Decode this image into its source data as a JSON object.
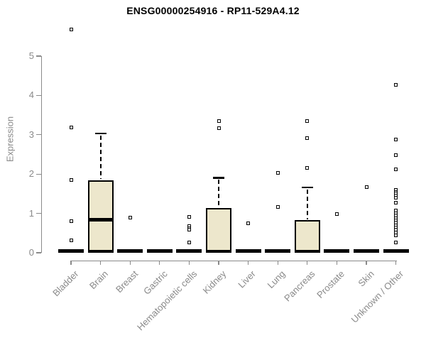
{
  "title": "ENSG00000254916 - RP11-529A4.12",
  "chart_data": {
    "type": "boxplot",
    "title": "ENSG00000254916 - RP11-529A4.12",
    "xlabel": "",
    "ylabel": "Expression",
    "ylim": [
      0,
      5
    ],
    "y_ticks": [
      0,
      1,
      2,
      3,
      4,
      5
    ],
    "grid": false,
    "legend": false,
    "box_fill_color": "#EDE7CC",
    "box_stroke_color": "#000000",
    "axis_color": "#8a8a8a",
    "categories": [
      "Bladder",
      "Brain",
      "Breast",
      "Gastric",
      "Hematopoietic cells",
      "Kidney",
      "Liver",
      "Lung",
      "Pancreas",
      "Prostate",
      "Skin",
      "Unknown / Other"
    ],
    "series": [
      {
        "label": "Bladder",
        "q1": 0,
        "median": 0.02,
        "q3": 0.05,
        "whisker_low": 0,
        "whisker_high": 0.05,
        "outliers": [
          5.67,
          3.18,
          1.85,
          0.8,
          0.32
        ]
      },
      {
        "label": "Brain",
        "q1": 0.02,
        "median": 0.84,
        "q3": 1.85,
        "whisker_low": 0,
        "whisker_high": 3.03,
        "outliers": []
      },
      {
        "label": "Breast",
        "q1": 0,
        "median": 0.02,
        "q3": 0.05,
        "whisker_low": 0,
        "whisker_high": 0.05,
        "outliers": [
          0.89
        ]
      },
      {
        "label": "Gastric",
        "q1": 0,
        "median": 0.02,
        "q3": 0.05,
        "whisker_low": 0,
        "whisker_high": 0.05,
        "outliers": []
      },
      {
        "label": "Hematopoietic cells",
        "q1": 0,
        "median": 0.02,
        "q3": 0.05,
        "whisker_low": 0,
        "whisker_high": 0.05,
        "outliers": [
          0.92,
          0.68,
          0.63,
          0.58,
          0.26
        ]
      },
      {
        "label": "Kidney",
        "q1": 0.01,
        "median": 0.03,
        "q3": 1.13,
        "whisker_low": 0,
        "whisker_high": 1.9,
        "outliers": [
          3.35,
          3.17
        ]
      },
      {
        "label": "Liver",
        "q1": 0,
        "median": 0.02,
        "q3": 0.05,
        "whisker_low": 0,
        "whisker_high": 0.05,
        "outliers": [
          0.75
        ]
      },
      {
        "label": "Lung",
        "q1": 0,
        "median": 0.02,
        "q3": 0.05,
        "whisker_low": 0,
        "whisker_high": 0.05,
        "outliers": [
          2.03,
          1.17
        ]
      },
      {
        "label": "Pancreas",
        "q1": 0.01,
        "median": 0.03,
        "q3": 0.83,
        "whisker_low": 0,
        "whisker_high": 1.66,
        "outliers": [
          3.35,
          2.92,
          2.15
        ]
      },
      {
        "label": "Prostate",
        "q1": 0,
        "median": 0.02,
        "q3": 0.05,
        "whisker_low": 0,
        "whisker_high": 0.05,
        "outliers": [
          0.98
        ]
      },
      {
        "label": "Skin",
        "q1": 0,
        "median": 0.02,
        "q3": 0.05,
        "whisker_low": 0,
        "whisker_high": 0.05,
        "outliers": [
          1.67
        ]
      },
      {
        "label": "Unknown / Other",
        "q1": 0,
        "median": 0.02,
        "q3": 0.05,
        "whisker_low": 0,
        "whisker_high": 0.05,
        "outliers": [
          4.27,
          2.88,
          2.49,
          2.12,
          1.6,
          1.55,
          1.5,
          1.45,
          1.4,
          1.27,
          1.07,
          1.01,
          0.94,
          0.88,
          0.82,
          0.76,
          0.7,
          0.64,
          0.58,
          0.51,
          0.45,
          0.26
        ]
      }
    ]
  }
}
